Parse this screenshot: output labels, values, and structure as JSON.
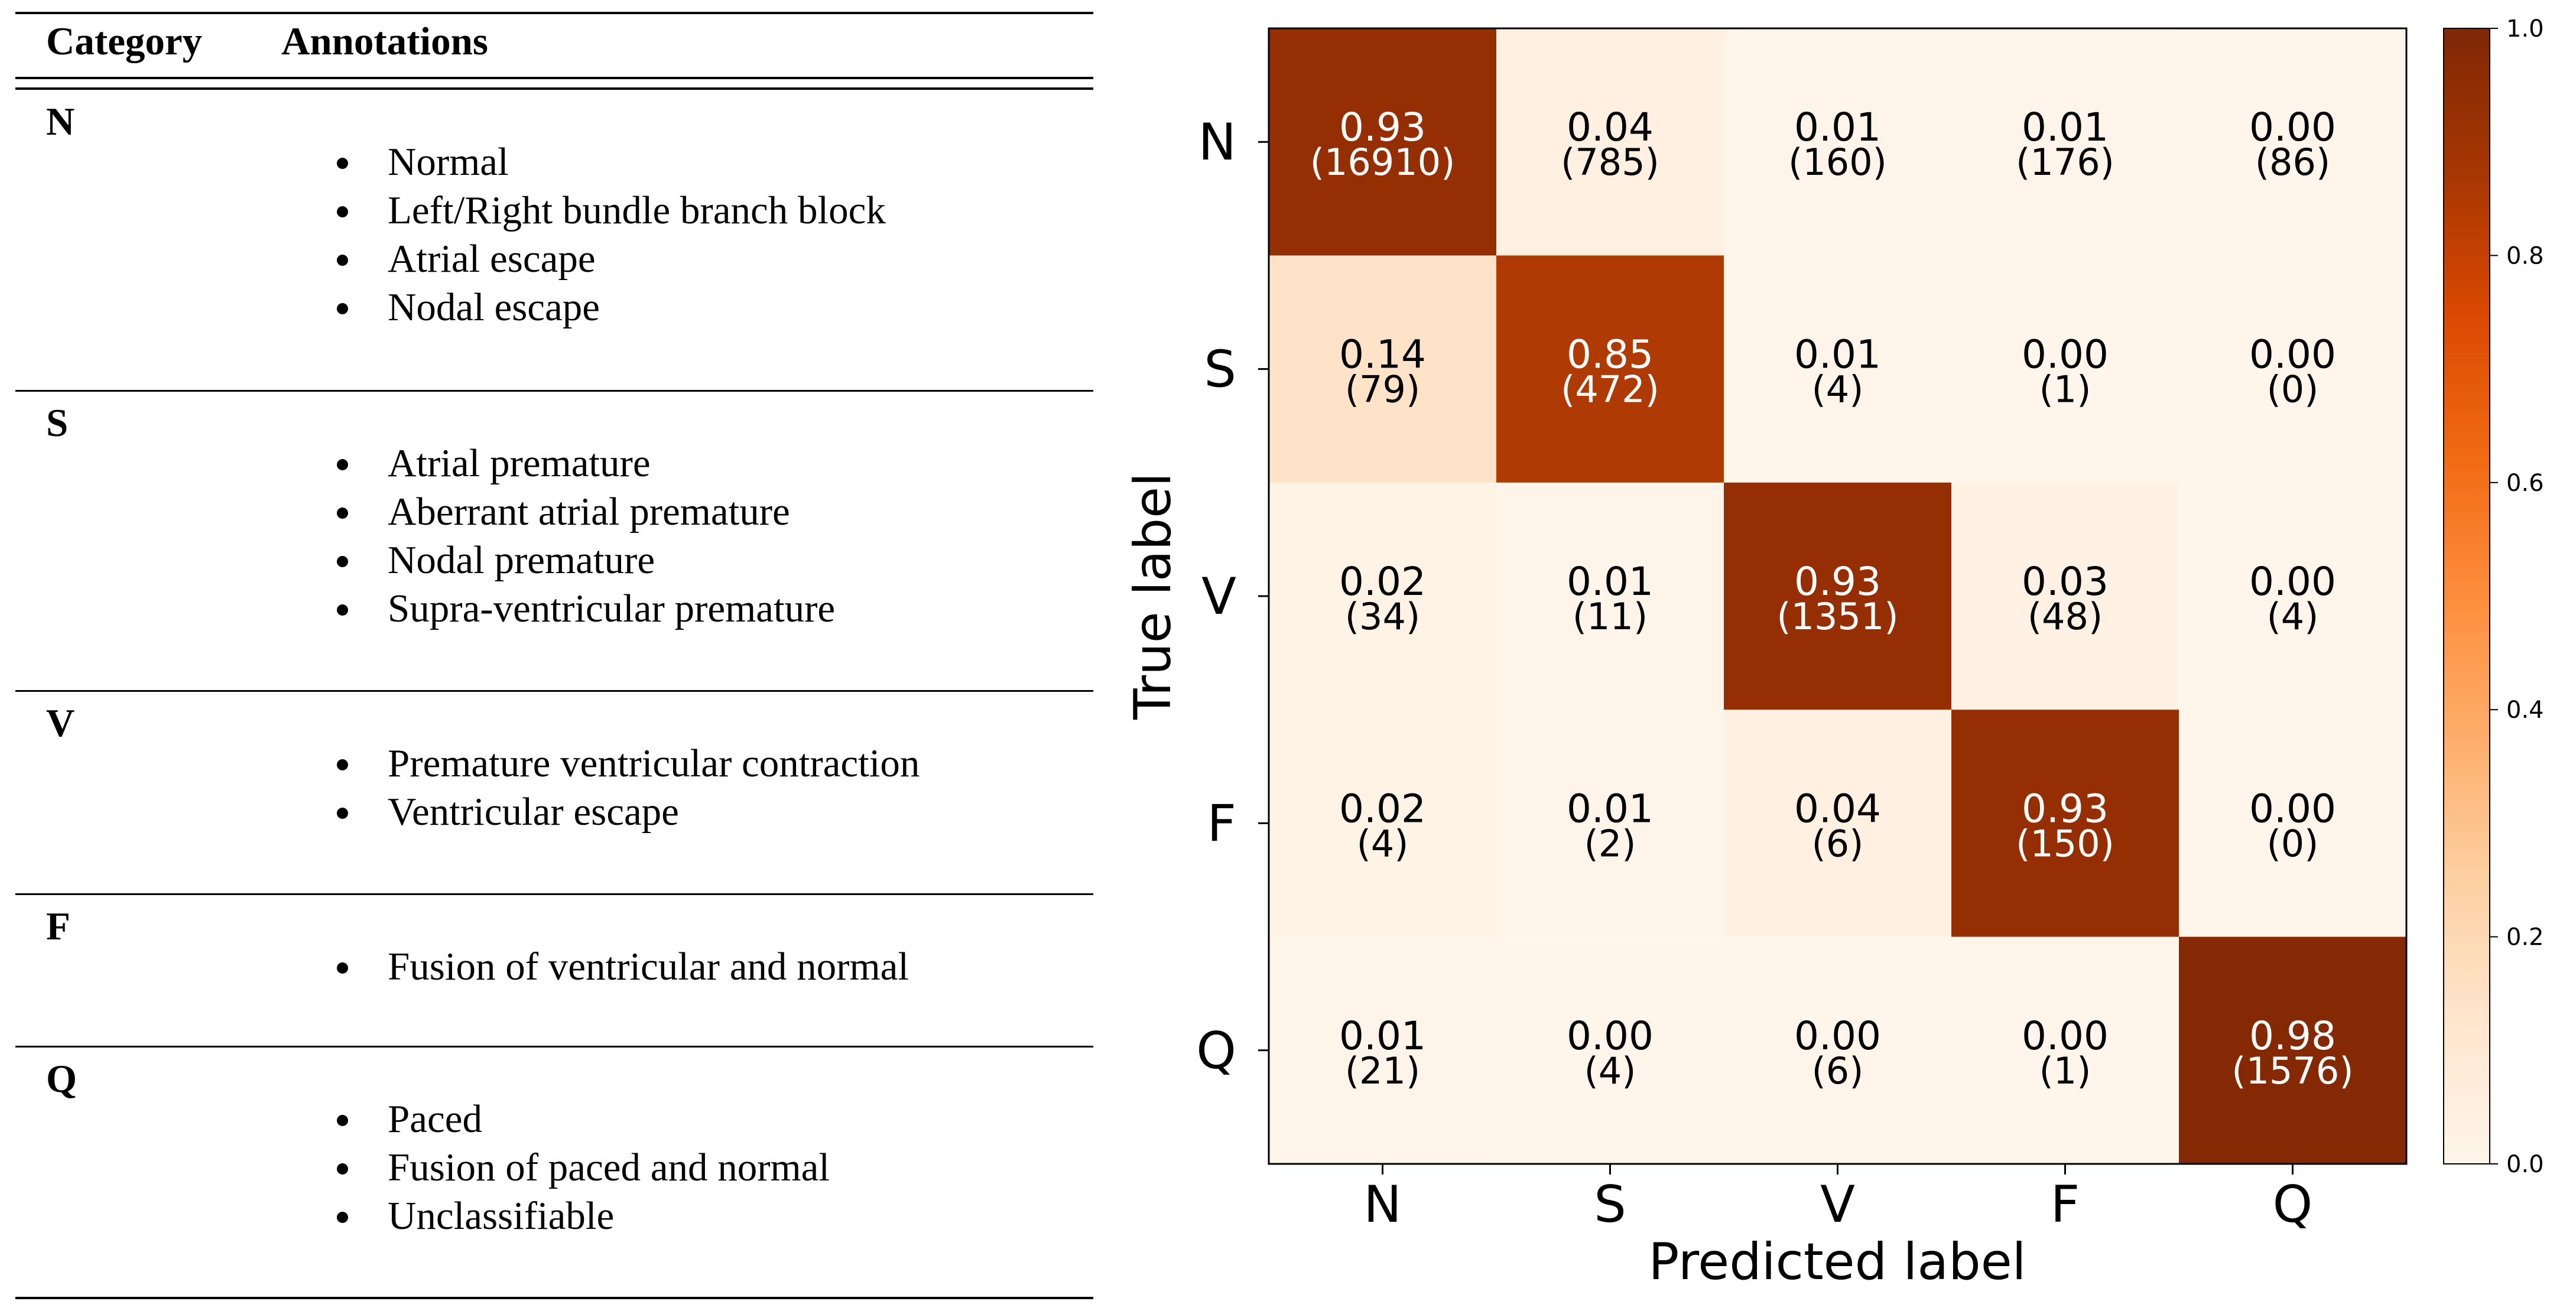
{
  "table": {
    "header": {
      "category": "Category",
      "annotations": "Annotations"
    },
    "rows": [
      {
        "category": "N",
        "annotations": [
          "Normal",
          "Left/Right bundle branch block",
          "Atrial escape",
          "Nodal escape"
        ]
      },
      {
        "category": "S",
        "annotations": [
          "Atrial premature",
          "Aberrant atrial premature",
          "Nodal premature",
          "Supra-ventricular premature"
        ]
      },
      {
        "category": "V",
        "annotations": [
          "Premature ventricular contraction",
          "Ventricular escape"
        ]
      },
      {
        "category": "F",
        "annotations": [
          "Fusion of ventricular and normal"
        ]
      },
      {
        "category": "Q",
        "annotations": [
          "Paced",
          "Fusion of paced and normal",
          "Unclassifiable"
        ]
      }
    ]
  },
  "chart_data": {
    "type": "heatmap",
    "title": "",
    "xlabel": "Predicted label",
    "ylabel": "True label",
    "x_categories": [
      "N",
      "S",
      "V",
      "F",
      "Q"
    ],
    "y_categories": [
      "N",
      "S",
      "V",
      "F",
      "Q"
    ],
    "values": [
      [
        0.93,
        0.04,
        0.01,
        0.01,
        0.0
      ],
      [
        0.14,
        0.85,
        0.01,
        0.0,
        0.0
      ],
      [
        0.02,
        0.01,
        0.93,
        0.03,
        0.0
      ],
      [
        0.02,
        0.01,
        0.04,
        0.93,
        0.0
      ],
      [
        0.01,
        0.0,
        0.0,
        0.0,
        0.98
      ]
    ],
    "counts": [
      [
        16910,
        785,
        160,
        176,
        86
      ],
      [
        79,
        472,
        4,
        1,
        0
      ],
      [
        34,
        11,
        1351,
        48,
        4
      ],
      [
        4,
        2,
        6,
        150,
        0
      ],
      [
        21,
        4,
        6,
        1,
        1576
      ]
    ],
    "colorbar": {
      "range": [
        0.0,
        1.0
      ],
      "ticks": [
        "0.0",
        "0.2",
        "0.4",
        "0.6",
        "0.8",
        "1.0"
      ]
    },
    "colormap": "Oranges",
    "colors": {
      "low": "#fff5eb",
      "high": "#7f2704",
      "light_text": "#ffffff",
      "dark_text": "#000000"
    }
  }
}
